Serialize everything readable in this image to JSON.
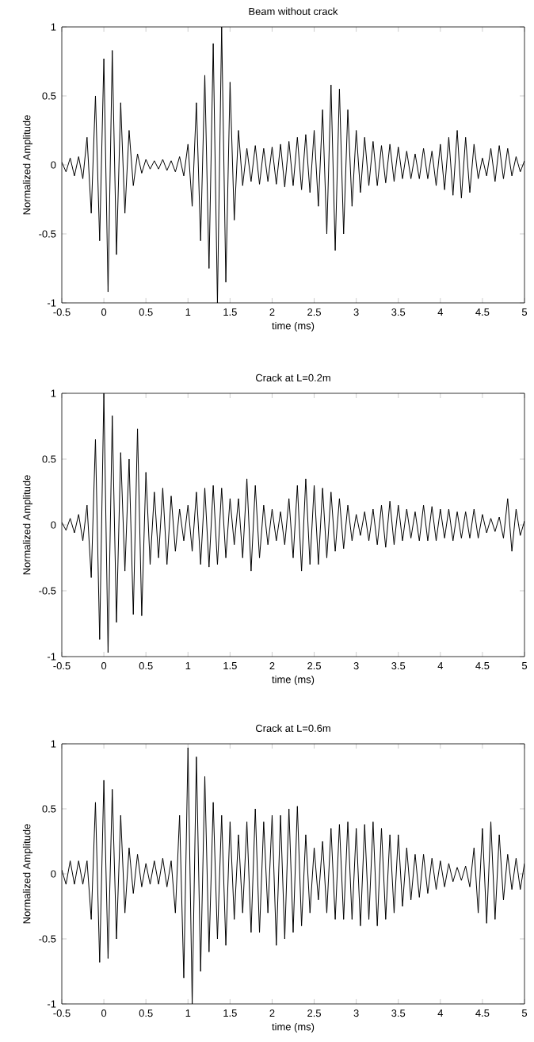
{
  "chart_data": [
    {
      "type": "line",
      "title": "Beam without crack",
      "xlabel": "time (ms)",
      "ylabel": "Normalized Amplitude",
      "xlim": [
        -0.5,
        5
      ],
      "ylim": [
        -1,
        1
      ],
      "xticks": [
        -0.5,
        0,
        0.5,
        1,
        1.5,
        2,
        2.5,
        3,
        3.5,
        4,
        4.5,
        5
      ],
      "yticks": [
        -1,
        -0.5,
        0,
        0.5,
        1
      ],
      "x": [
        -0.5,
        -0.45,
        -0.4,
        -0.35,
        -0.3,
        -0.25,
        -0.2,
        -0.15,
        -0.1,
        -0.05,
        0,
        0.05,
        0.1,
        0.15,
        0.2,
        0.25,
        0.3,
        0.35,
        0.4,
        0.45,
        0.5,
        0.55,
        0.6,
        0.65,
        0.7,
        0.75,
        0.8,
        0.85,
        0.9,
        0.95,
        1,
        1.05,
        1.1,
        1.15,
        1.2,
        1.25,
        1.3,
        1.35,
        1.4,
        1.45,
        1.5,
        1.55,
        1.6,
        1.65,
        1.7,
        1.75,
        1.8,
        1.85,
        1.9,
        1.95,
        2,
        2.05,
        2.1,
        2.15,
        2.2,
        2.25,
        2.3,
        2.35,
        2.4,
        2.45,
        2.5,
        2.55,
        2.6,
        2.65,
        2.7,
        2.75,
        2.8,
        2.85,
        2.9,
        2.95,
        3,
        3.05,
        3.1,
        3.15,
        3.2,
        3.25,
        3.3,
        3.35,
        3.4,
        3.45,
        3.5,
        3.55,
        3.6,
        3.65,
        3.7,
        3.75,
        3.8,
        3.85,
        3.9,
        3.95,
        4,
        4.05,
        4.1,
        4.15,
        4.2,
        4.25,
        4.3,
        4.35,
        4.4,
        4.45,
        4.5,
        4.55,
        4.6,
        4.65,
        4.7,
        4.75,
        4.8,
        4.85,
        4.9,
        4.95,
        5
      ],
      "series": [
        {
          "color": "#000000",
          "values": [
            0.02,
            -0.05,
            0.05,
            -0.08,
            0.06,
            -0.1,
            0.2,
            -0.35,
            0.5,
            -0.55,
            0.77,
            -0.92,
            0.83,
            -0.65,
            0.45,
            -0.35,
            0.25,
            -0.15,
            0.08,
            -0.06,
            0.04,
            -0.03,
            0.03,
            -0.03,
            0.04,
            -0.04,
            0.03,
            -0.05,
            0.06,
            -0.08,
            0.15,
            -0.3,
            0.45,
            -0.55,
            0.65,
            -0.75,
            0.88,
            -1.0,
            1.0,
            -0.85,
            0.6,
            -0.4,
            0.25,
            -0.15,
            0.12,
            -0.12,
            0.14,
            -0.14,
            0.12,
            -0.12,
            0.13,
            -0.14,
            0.15,
            -0.16,
            0.17,
            -0.15,
            0.2,
            -0.18,
            0.22,
            -0.2,
            0.25,
            -0.3,
            0.4,
            -0.5,
            0.58,
            -0.62,
            0.55,
            -0.5,
            0.4,
            -0.3,
            0.25,
            -0.2,
            0.2,
            -0.15,
            0.17,
            -0.15,
            0.14,
            -0.13,
            0.15,
            -0.12,
            0.13,
            -0.1,
            0.1,
            -0.1,
            0.08,
            -0.1,
            0.12,
            -0.1,
            0.1,
            -0.15,
            0.15,
            -0.18,
            0.2,
            -0.22,
            0.25,
            -0.24,
            0.2,
            -0.2,
            0.15,
            -0.1,
            0.05,
            -0.08,
            0.12,
            -0.12,
            0.14,
            -0.1,
            0.12,
            -0.08,
            0.06,
            -0.05,
            0.03
          ]
        }
      ]
    },
    {
      "type": "line",
      "title": "Crack at L=0.2m",
      "xlabel": "time (ms)",
      "ylabel": "Normalized Amplitude",
      "xlim": [
        -0.5,
        5
      ],
      "ylim": [
        -1,
        1
      ],
      "xticks": [
        -0.5,
        0,
        0.5,
        1,
        1.5,
        2,
        2.5,
        3,
        3.5,
        4,
        4.5,
        5
      ],
      "yticks": [
        -1,
        -0.5,
        0,
        0.5,
        1
      ],
      "x": [
        -0.5,
        -0.45,
        -0.4,
        -0.35,
        -0.3,
        -0.25,
        -0.2,
        -0.15,
        -0.1,
        -0.05,
        0,
        0.05,
        0.1,
        0.15,
        0.2,
        0.25,
        0.3,
        0.35,
        0.4,
        0.45,
        0.5,
        0.55,
        0.6,
        0.65,
        0.7,
        0.75,
        0.8,
        0.85,
        0.9,
        0.95,
        1,
        1.05,
        1.1,
        1.15,
        1.2,
        1.25,
        1.3,
        1.35,
        1.4,
        1.45,
        1.5,
        1.55,
        1.6,
        1.65,
        1.7,
        1.75,
        1.8,
        1.85,
        1.9,
        1.95,
        2,
        2.05,
        2.1,
        2.15,
        2.2,
        2.25,
        2.3,
        2.35,
        2.4,
        2.45,
        2.5,
        2.55,
        2.6,
        2.65,
        2.7,
        2.75,
        2.8,
        2.85,
        2.9,
        2.95,
        3,
        3.05,
        3.1,
        3.15,
        3.2,
        3.25,
        3.3,
        3.35,
        3.4,
        3.45,
        3.5,
        3.55,
        3.6,
        3.65,
        3.7,
        3.75,
        3.8,
        3.85,
        3.9,
        3.95,
        4,
        4.05,
        4.1,
        4.15,
        4.2,
        4.25,
        4.3,
        4.35,
        4.4,
        4.45,
        4.5,
        4.55,
        4.6,
        4.65,
        4.7,
        4.75,
        4.8,
        4.85,
        4.9,
        4.95,
        5
      ],
      "series": [
        {
          "color": "#000000",
          "values": [
            0.02,
            -0.04,
            0.05,
            -0.06,
            0.08,
            -0.12,
            0.15,
            -0.4,
            0.65,
            -0.87,
            1.0,
            -0.97,
            0.83,
            -0.74,
            0.55,
            -0.35,
            0.5,
            -0.68,
            0.73,
            -0.69,
            0.4,
            -0.3,
            0.25,
            -0.25,
            0.28,
            -0.3,
            0.22,
            -0.2,
            0.12,
            -0.12,
            0.15,
            -0.2,
            0.25,
            -0.3,
            0.28,
            -0.32,
            0.3,
            -0.3,
            0.28,
            -0.25,
            0.2,
            -0.15,
            0.2,
            -0.25,
            0.35,
            -0.35,
            0.3,
            -0.25,
            0.15,
            -0.15,
            0.12,
            -0.12,
            0.1,
            -0.15,
            0.2,
            -0.25,
            0.3,
            -0.35,
            0.35,
            -0.3,
            0.3,
            -0.3,
            0.28,
            -0.25,
            0.25,
            -0.2,
            0.2,
            -0.18,
            0.15,
            -0.12,
            0.08,
            -0.08,
            0.1,
            -0.12,
            0.12,
            -0.15,
            0.15,
            -0.17,
            0.18,
            -0.15,
            0.15,
            -0.12,
            0.12,
            -0.1,
            0.1,
            -0.12,
            0.15,
            -0.12,
            0.14,
            -0.12,
            0.12,
            -0.1,
            0.12,
            -0.12,
            0.1,
            -0.1,
            0.1,
            -0.1,
            0.12,
            -0.1,
            0.08,
            -0.06,
            0.05,
            -0.05,
            0.06,
            -0.1,
            0.2,
            -0.2,
            0.12,
            -0.08,
            0.03
          ]
        }
      ]
    },
    {
      "type": "line",
      "title": "Crack at L=0.6m",
      "xlabel": "time (ms)",
      "ylabel": "Normalized Amplitude",
      "xlim": [
        -0.5,
        5
      ],
      "ylim": [
        -1,
        1
      ],
      "xticks": [
        -0.5,
        0,
        0.5,
        1,
        1.5,
        2,
        2.5,
        3,
        3.5,
        4,
        4.5,
        5
      ],
      "yticks": [
        -1,
        -0.5,
        0,
        0.5,
        1
      ],
      "x": [
        -0.5,
        -0.45,
        -0.4,
        -0.35,
        -0.3,
        -0.25,
        -0.2,
        -0.15,
        -0.1,
        -0.05,
        0,
        0.05,
        0.1,
        0.15,
        0.2,
        0.25,
        0.3,
        0.35,
        0.4,
        0.45,
        0.5,
        0.55,
        0.6,
        0.65,
        0.7,
        0.75,
        0.8,
        0.85,
        0.9,
        0.95,
        1,
        1.05,
        1.1,
        1.15,
        1.2,
        1.25,
        1.3,
        1.35,
        1.4,
        1.45,
        1.5,
        1.55,
        1.6,
        1.65,
        1.7,
        1.75,
        1.8,
        1.85,
        1.9,
        1.95,
        2,
        2.05,
        2.1,
        2.15,
        2.2,
        2.25,
        2.3,
        2.35,
        2.4,
        2.45,
        2.5,
        2.55,
        2.6,
        2.65,
        2.7,
        2.75,
        2.8,
        2.85,
        2.9,
        2.95,
        3,
        3.05,
        3.1,
        3.15,
        3.2,
        3.25,
        3.3,
        3.35,
        3.4,
        3.45,
        3.5,
        3.55,
        3.6,
        3.65,
        3.7,
        3.75,
        3.8,
        3.85,
        3.9,
        3.95,
        4,
        4.05,
        4.1,
        4.15,
        4.2,
        4.25,
        4.3,
        4.35,
        4.4,
        4.45,
        4.5,
        4.55,
        4.6,
        4.65,
        4.7,
        4.75,
        4.8,
        4.85,
        4.9,
        4.95,
        5
      ],
      "series": [
        {
          "color": "#000000",
          "values": [
            0.03,
            -0.08,
            0.1,
            -0.08,
            0.1,
            -0.08,
            0.1,
            -0.35,
            0.55,
            -0.68,
            0.72,
            -0.65,
            0.65,
            -0.5,
            0.45,
            -0.3,
            0.2,
            -0.15,
            0.15,
            -0.1,
            0.08,
            -0.08,
            0.1,
            -0.08,
            0.12,
            -0.1,
            0.1,
            -0.3,
            0.45,
            -0.8,
            0.97,
            -1.0,
            0.9,
            -0.75,
            0.75,
            -0.6,
            0.55,
            -0.5,
            0.45,
            -0.55,
            0.4,
            -0.35,
            0.3,
            -0.3,
            0.4,
            -0.45,
            0.5,
            -0.45,
            0.4,
            -0.3,
            0.45,
            -0.55,
            0.45,
            -0.5,
            0.5,
            -0.45,
            0.52,
            -0.4,
            0.3,
            -0.3,
            0.2,
            -0.2,
            0.25,
            -0.3,
            0.35,
            -0.35,
            0.38,
            -0.35,
            0.4,
            -0.35,
            0.35,
            -0.4,
            0.38,
            -0.35,
            0.4,
            -0.4,
            0.35,
            -0.35,
            0.3,
            -0.3,
            0.3,
            -0.25,
            0.2,
            -0.2,
            0.15,
            -0.18,
            0.15,
            -0.15,
            0.12,
            -0.12,
            0.1,
            -0.1,
            0.08,
            -0.06,
            0.05,
            -0.05,
            0.06,
            -0.1,
            0.2,
            -0.3,
            0.35,
            -0.38,
            0.4,
            -0.35,
            0.3,
            -0.2,
            0.15,
            -0.12,
            0.12,
            -0.12,
            0.08
          ]
        }
      ]
    }
  ]
}
